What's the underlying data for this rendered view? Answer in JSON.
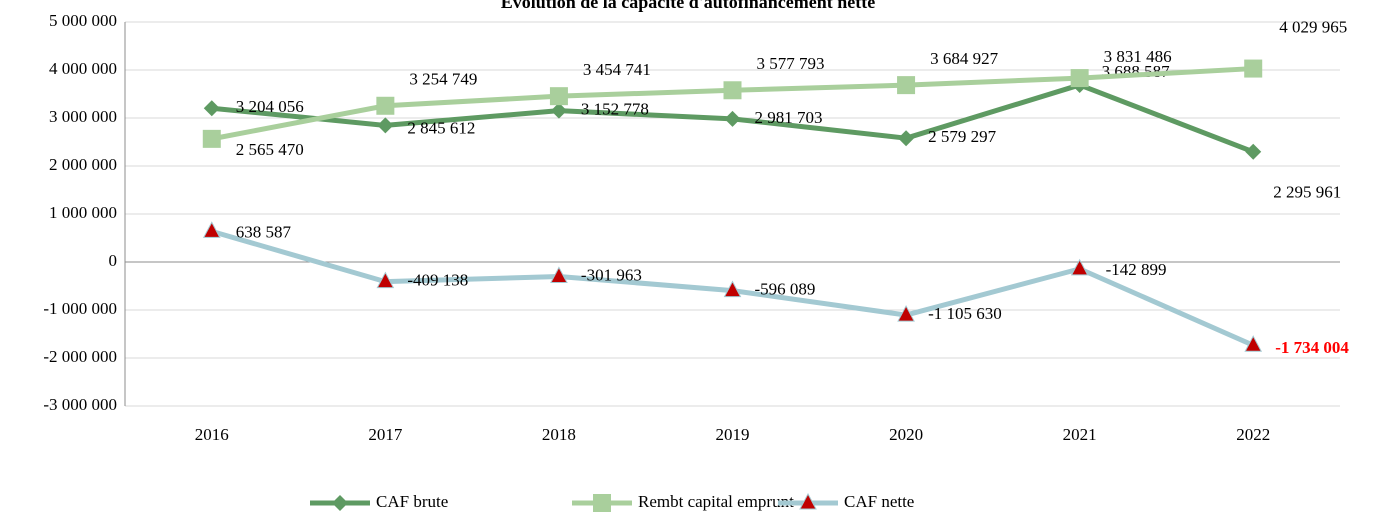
{
  "chart_data": {
    "type": "line",
    "title": "Évolution de la capacité d'autofinancement nette",
    "categories": [
      "2016",
      "2017",
      "2018",
      "2019",
      "2020",
      "2021",
      "2022"
    ],
    "series": [
      {
        "name": "CAF brute",
        "color": "#5e9a62",
        "marker": "diamond",
        "marker_color": "#5e9a62",
        "values": [
          3204056,
          2845612,
          3152778,
          2981703,
          2579297,
          3688587,
          2295961
        ],
        "value_labels": [
          "3 204 056",
          "2 845 612",
          "3 152 778",
          "2 981 703",
          "2 579 297",
          "3 688 587",
          "2 295 961"
        ]
      },
      {
        "name": "Rembt capital emprunt",
        "color": "#a9cf9c",
        "marker": "square",
        "marker_color": "#a9cf9c",
        "values": [
          2565470,
          3254749,
          3454741,
          3577793,
          3684927,
          3831486,
          4029965
        ],
        "value_labels": [
          "2 565 470",
          "3 254 749",
          "3 454 741",
          "3 577 793",
          "3 684 927",
          "3 831 486",
          "4 029 965"
        ]
      },
      {
        "name": "CAF nette",
        "color": "#a3c9d2",
        "marker": "triangle",
        "marker_color": "#c00000",
        "values": [
          638587,
          -409138,
          -301963,
          -596089,
          -1105630,
          -142899,
          -1734004
        ],
        "value_labels": [
          "638 587",
          "-409 138",
          "-301 963",
          "-596 089",
          "-1 105 630",
          "-142 899",
          "-1 734 004"
        ]
      }
    ],
    "ylim": [
      -3000000,
      5000000
    ],
    "yticks": [
      {
        "value": -3000000,
        "label": "-3 000 000"
      },
      {
        "value": -2000000,
        "label": "-2 000 000"
      },
      {
        "value": -1000000,
        "label": "-1 000 000"
      },
      0,
      {
        "value": 1000000,
        "label": "1 000 000"
      },
      {
        "value": 2000000,
        "label": "2 000 000"
      },
      {
        "value": 3000000,
        "label": "3 000 000"
      },
      {
        "value": 4000000,
        "label": "4 000 000"
      },
      {
        "value": 5000000,
        "label": "5 000 000"
      }
    ],
    "grid": true,
    "legend": "bottom"
  }
}
